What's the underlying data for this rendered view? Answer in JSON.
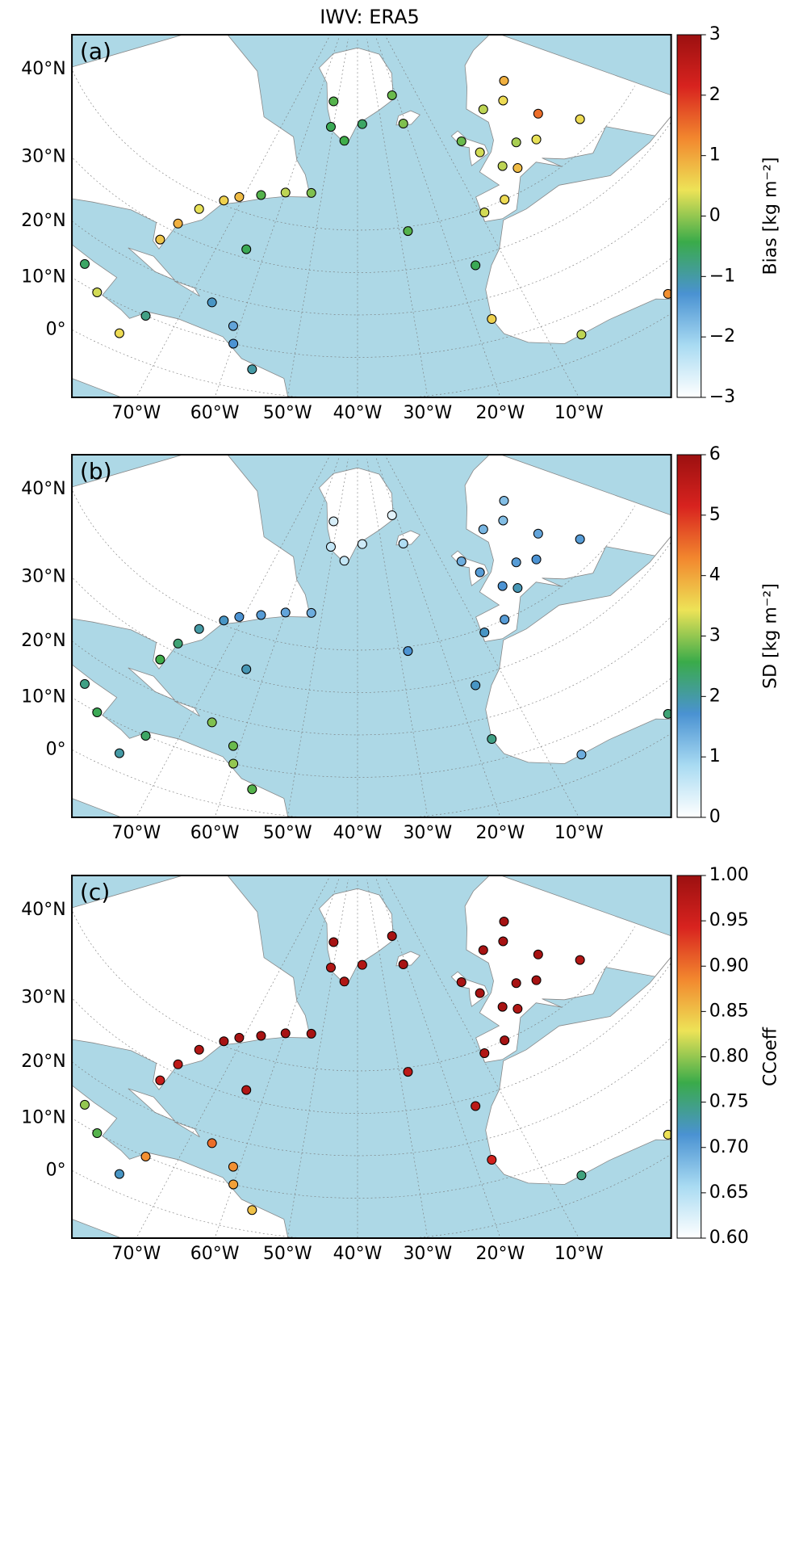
{
  "chart_data": [
    {
      "type": "scatter-map",
      "title": "IWV: ERA5",
      "panel_label": "(a)",
      "colorbar_label": "Bias [kg m⁻²]",
      "colormap": [
        "#ffffff",
        "#a9dbf2",
        "#4a92d2",
        "#3aab4a",
        "#ede357",
        "#f2872e",
        "#d8231f",
        "#9c1010"
      ],
      "clim": [
        -3,
        3
      ],
      "cticks": [
        3,
        2,
        1,
        0,
        {
          "value": -1,
          "label": "−1"
        },
        {
          "value": -2,
          "label": "−2"
        },
        {
          "value": -3,
          "label": "−3"
        }
      ],
      "latticks": [
        {
          "value": 40,
          "label": "40°N"
        },
        {
          "value": 30,
          "label": "30°N"
        },
        {
          "value": 20,
          "label": "20°N"
        },
        {
          "value": 10,
          "label": "10°N"
        },
        {
          "value": 0,
          "label": "0°"
        }
      ],
      "lonticks": [
        {
          "value": -70,
          "label": "70°W"
        },
        {
          "value": -60,
          "label": "60°W"
        },
        {
          "value": -50,
          "label": "50°W"
        },
        {
          "value": -40,
          "label": "40°W"
        },
        {
          "value": -30,
          "label": "30°W"
        },
        {
          "value": -20,
          "label": "20°W"
        },
        {
          "value": -10,
          "label": "10°W"
        }
      ],
      "x": [
        -9,
        -3,
        2,
        5,
        10,
        15,
        -1,
        -4,
        10,
        18,
        25,
        22,
        28,
        -74,
        -71,
        -66,
        -60,
        -53,
        -78,
        -80,
        -81,
        -51,
        -45,
        -52,
        -38,
        -22,
        -21,
        -16,
        -17,
        -64,
        -28,
        -66,
        -61,
        -60,
        -56,
        -75,
        -84,
        -89,
        -77,
        10,
        -5
      ],
      "y": [
        39,
        40,
        47,
        45,
        50,
        48,
        52,
        56,
        60,
        59,
        62,
        52,
        45,
        41,
        43,
        45,
        47,
        48,
        37,
        32,
        27,
        64,
        61,
        70,
        65,
        71,
        64,
        28,
        15,
        32,
        39,
        18,
        14,
        10,
        5,
        10,
        10,
        14,
        4,
        4,
        5
      ],
      "values": [
        0.3,
        0.5,
        0.2,
        0.8,
        0.1,
        0.4,
        0.3,
        -0.2,
        0.2,
        0.5,
        0.9,
        1.5,
        0.5,
        0.6,
        0.8,
        -0.3,
        0.2,
        -0.1,
        0.4,
        0.9,
        0.7,
        -0.5,
        -0.4,
        -0.3,
        -0.6,
        -0.2,
        -0.1,
        -0.5,
        0.6,
        -0.5,
        -0.3,
        -1.2,
        -1.5,
        -1.3,
        -1.0,
        -0.8,
        0.3,
        -0.6,
        0.5,
        1.2,
        0.2
      ]
    },
    {
      "type": "scatter-map",
      "panel_label": "(b)",
      "colorbar_label": "SD [kg m⁻²]",
      "colormap": [
        "#ffffff",
        "#a9dbf2",
        "#4a92d2",
        "#3aab4a",
        "#ede357",
        "#f2872e",
        "#d8231f",
        "#9c1010"
      ],
      "clim": [
        0,
        6
      ],
      "cticks": [
        6,
        5,
        4,
        3,
        2,
        1,
        0
      ],
      "latticks": [
        {
          "value": 40,
          "label": "40°N"
        },
        {
          "value": 30,
          "label": "30°N"
        },
        {
          "value": 20,
          "label": "20°N"
        },
        {
          "value": 10,
          "label": "10°N"
        },
        {
          "value": 0,
          "label": "0°"
        }
      ],
      "lonticks": [
        {
          "value": -70,
          "label": "70°W"
        },
        {
          "value": -60,
          "label": "60°W"
        },
        {
          "value": -50,
          "label": "50°W"
        },
        {
          "value": -40,
          "label": "40°W"
        },
        {
          "value": -30,
          "label": "30°W"
        },
        {
          "value": -20,
          "label": "20°W"
        },
        {
          "value": -10,
          "label": "10°W"
        }
      ],
      "x": [
        -9,
        -3,
        2,
        5,
        10,
        15,
        -1,
        -4,
        10,
        18,
        25,
        22,
        28,
        -74,
        -71,
        -66,
        -60,
        -53,
        -78,
        -80,
        -81,
        -51,
        -45,
        -52,
        -38,
        -22,
        -21,
        -16,
        -17,
        -64,
        -28,
        -66,
        -61,
        -60,
        -56,
        -75,
        -84,
        -89,
        -77,
        10,
        -5
      ],
      "y": [
        39,
        40,
        47,
        45,
        50,
        48,
        52,
        56,
        60,
        59,
        62,
        52,
        45,
        41,
        43,
        45,
        47,
        48,
        37,
        32,
        27,
        64,
        61,
        70,
        65,
        71,
        64,
        28,
        15,
        32,
        39,
        18,
        14,
        10,
        5,
        10,
        10,
        14,
        4,
        4,
        5
      ],
      "values": [
        1.8,
        1.6,
        1.7,
        1.9,
        1.6,
        1.7,
        1.6,
        1.4,
        1.3,
        1.2,
        1.2,
        1.5,
        1.6,
        1.8,
        1.7,
        1.6,
        1.5,
        1.4,
        2.0,
        2.3,
        2.6,
        0.6,
        0.6,
        0.4,
        0.5,
        0.3,
        0.8,
        1.8,
        2.2,
        1.9,
        1.7,
        2.9,
        2.8,
        3.0,
        2.7,
        2.4,
        2.5,
        2.2,
        2.0,
        2.3,
        1.4
      ]
    },
    {
      "type": "scatter-map",
      "panel_label": "(c)",
      "colorbar_label": "CCoeff",
      "colormap": [
        "#ffffff",
        "#a9dbf2",
        "#4a92d2",
        "#3aab4a",
        "#ede357",
        "#f2872e",
        "#d8231f",
        "#9c1010"
      ],
      "clim": [
        0.6,
        1
      ],
      "cticks": [
        {
          "value": 1,
          "label": "1.00"
        },
        0.95,
        {
          "value": 0.9,
          "label": "0.90"
        },
        0.85,
        {
          "value": 0.8,
          "label": "0.80"
        },
        0.75,
        {
          "value": 0.7,
          "label": "0.70"
        },
        0.65,
        {
          "value": 0.6,
          "label": "0.60"
        }
      ],
      "latticks": [
        {
          "value": 40,
          "label": "40°N"
        },
        {
          "value": 30,
          "label": "30°N"
        },
        {
          "value": 20,
          "label": "20°N"
        },
        {
          "value": 10,
          "label": "10°N"
        },
        {
          "value": 0,
          "label": "0°"
        }
      ],
      "lonticks": [
        {
          "value": -70,
          "label": "70°W"
        },
        {
          "value": -60,
          "label": "60°W"
        },
        {
          "value": -50,
          "label": "50°W"
        },
        {
          "value": -40,
          "label": "40°W"
        },
        {
          "value": -30,
          "label": "30°W"
        },
        {
          "value": -20,
          "label": "20°W"
        },
        {
          "value": -10,
          "label": "10°W"
        }
      ],
      "x": [
        -9,
        -3,
        2,
        5,
        10,
        15,
        -1,
        -4,
        10,
        18,
        25,
        22,
        28,
        -74,
        -71,
        -66,
        -60,
        -53,
        -78,
        -80,
        -81,
        -51,
        -45,
        -52,
        -38,
        -22,
        -21,
        -16,
        -17,
        -64,
        -28,
        -66,
        -61,
        -60,
        -56,
        -75,
        -84,
        -89,
        -77,
        10,
        -5
      ],
      "y": [
        39,
        40,
        47,
        45,
        50,
        48,
        52,
        56,
        60,
        59,
        62,
        52,
        45,
        41,
        43,
        45,
        47,
        48,
        37,
        32,
        27,
        64,
        61,
        70,
        65,
        71,
        64,
        28,
        15,
        32,
        39,
        18,
        14,
        10,
        5,
        10,
        10,
        14,
        4,
        4,
        5
      ],
      "values": [
        0.98,
        0.99,
        0.99,
        0.98,
        0.99,
        0.99,
        0.99,
        0.99,
        0.99,
        0.99,
        0.99,
        0.99,
        0.98,
        0.99,
        0.99,
        0.99,
        0.99,
        0.99,
        0.98,
        0.97,
        0.96,
        0.98,
        0.98,
        0.99,
        0.98,
        0.99,
        0.99,
        0.97,
        0.95,
        0.98,
        0.97,
        0.9,
        0.88,
        0.87,
        0.85,
        0.88,
        0.78,
        0.8,
        0.72,
        0.83,
        0.75
      ]
    }
  ]
}
